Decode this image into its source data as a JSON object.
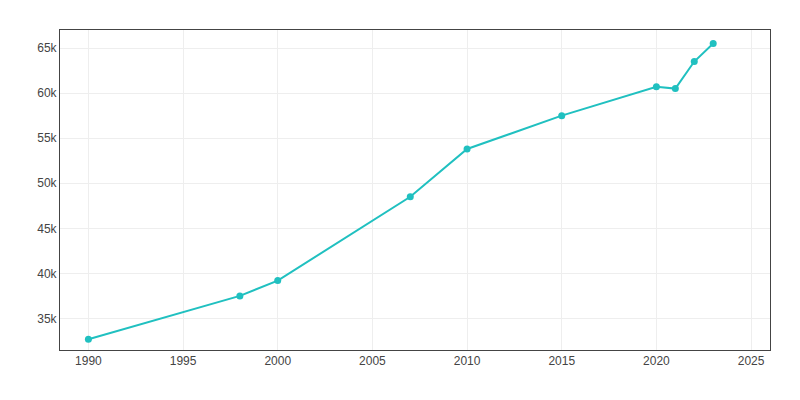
{
  "chart_data": {
    "type": "line",
    "x": [
      1990,
      1998,
      2000,
      2007,
      2010,
      2015,
      2020,
      2021,
      2022,
      2023
    ],
    "values": [
      32700,
      37500,
      39200,
      48500,
      53800,
      57500,
      60700,
      60500,
      63500,
      65500
    ],
    "color": "#20C0C0",
    "marker": "circle",
    "line_style": "solid",
    "xlim": [
      1988.5,
      2026
    ],
    "ylim": [
      31500,
      67000
    ],
    "xticks": [
      1990,
      1995,
      2000,
      2005,
      2010,
      2015,
      2020,
      2025
    ],
    "yticks": [
      {
        "value": 35000,
        "label": "35k"
      },
      {
        "value": 40000,
        "label": "40k"
      },
      {
        "value": 45000,
        "label": "45k"
      },
      {
        "value": 50000,
        "label": "50k"
      },
      {
        "value": 55000,
        "label": "55k"
      },
      {
        "value": 60000,
        "label": "60k"
      },
      {
        "value": 65000,
        "label": "65k"
      }
    ],
    "grid": true
  }
}
